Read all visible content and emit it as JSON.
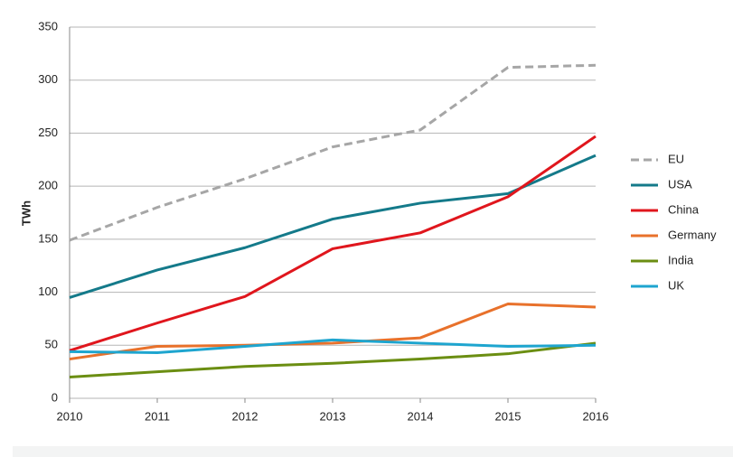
{
  "chart_data": {
    "type": "line",
    "y_label": "TWh",
    "categories": [
      "2010",
      "2011",
      "2012",
      "2013",
      "2014",
      "2015",
      "2016"
    ],
    "ylim": [
      0,
      350
    ],
    "yticks": [
      0,
      50,
      100,
      150,
      200,
      250,
      300,
      350
    ],
    "grid": true,
    "legend": "right",
    "series": [
      {
        "name": "EU",
        "color": "#a6a6a6",
        "dashed": true,
        "values": [
          149,
          180,
          207,
          237,
          253,
          312,
          314
        ]
      },
      {
        "name": "USA",
        "color": "#147a8a",
        "values": [
          95,
          121,
          142,
          169,
          184,
          193,
          229
        ]
      },
      {
        "name": "China",
        "color": "#e0161d",
        "values": [
          45,
          71,
          96,
          141,
          156,
          190,
          247
        ]
      },
      {
        "name": "Germany",
        "color": "#e8712b",
        "values": [
          37,
          49,
          50,
          52,
          57,
          89,
          86
        ]
      },
      {
        "name": "India",
        "color": "#6b8e12",
        "values": [
          20,
          25,
          30,
          33,
          37,
          42,
          52
        ]
      },
      {
        "name": "UK",
        "color": "#1ea5cf",
        "values": [
          44,
          43,
          49,
          55,
          52,
          49,
          50
        ]
      }
    ]
  }
}
